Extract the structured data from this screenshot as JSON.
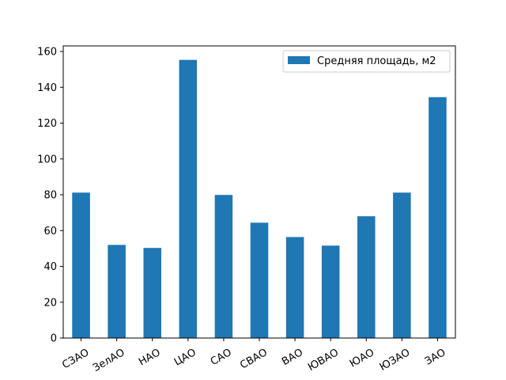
{
  "chart_data": {
    "type": "bar",
    "categories": [
      "СЗАО",
      "ЗелАО",
      "НАО",
      "ЦАО",
      "САО",
      "СВАО",
      "ВАО",
      "ЮВАО",
      "ЮАО",
      "ЮЗАО",
      "ЗАО"
    ],
    "series": [
      {
        "name": "Средняя площадь, м2",
        "values": [
          81.2,
          52.0,
          50.3,
          155.3,
          79.9,
          64.4,
          56.4,
          51.6,
          68.0,
          81.2,
          134.5
        ],
        "color": "#1f77b4"
      }
    ],
    "title": "",
    "xlabel": "",
    "ylabel": "",
    "ylim": [
      0,
      163.1
    ],
    "yticks": [
      0,
      20,
      40,
      60,
      80,
      100,
      120,
      140,
      160
    ],
    "xtick_rotation": "30 degrees",
    "grid": false,
    "legend": {
      "placement": "top-right"
    }
  }
}
